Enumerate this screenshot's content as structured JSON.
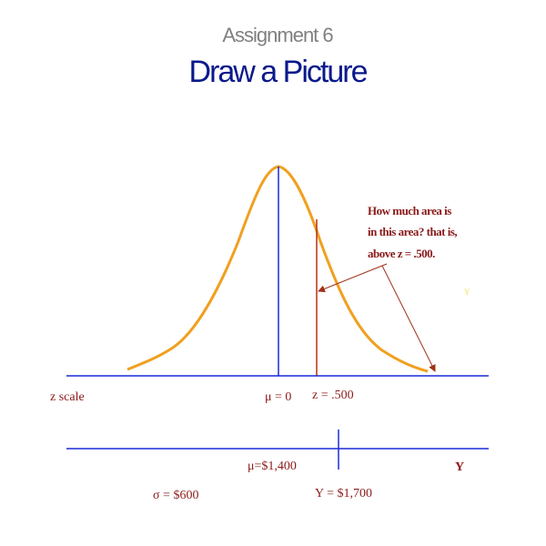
{
  "header": {
    "subtitle": "Assignment 6",
    "title": "Draw a Picture"
  },
  "annotation": {
    "lines": [
      "How much area is",
      "in this area? that is,",
      "above z = .500."
    ],
    "faint_label": "Y"
  },
  "z_axis": {
    "name": "z scale",
    "mean_label": "μ = 0",
    "z_label": "z = .500"
  },
  "y_axis": {
    "mean_label": "μ=$1,400",
    "name": "Y",
    "sd_label": "σ = $600",
    "value_label": "Y = $1,700"
  }
}
